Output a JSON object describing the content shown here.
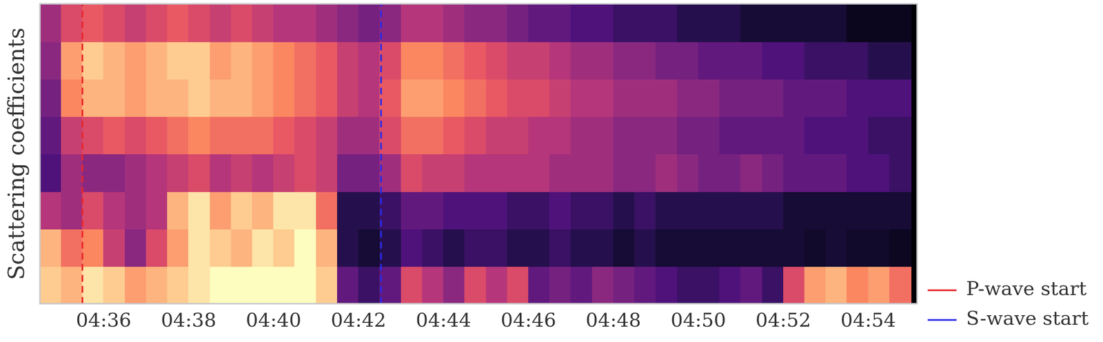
{
  "chart_data": {
    "type": "heatmap",
    "y_label": "Scattering coefficients",
    "x": [
      274.75,
      275.25,
      275.75,
      276.25,
      276.75,
      277.25,
      277.75,
      278.25,
      278.75,
      279.25,
      279.75,
      280.25,
      280.75,
      281.25,
      281.75,
      282.25,
      282.75,
      283.25,
      283.75,
      284.25,
      284.75,
      285.25,
      285.75,
      286.25,
      286.75,
      287.25,
      287.75,
      288.25,
      288.75,
      289.25,
      289.75,
      290.25,
      290.75,
      291.25,
      291.75,
      292.25,
      292.75,
      293.25,
      293.75,
      294.25,
      294.75
    ],
    "y": [
      0.5,
      1.5,
      2.5,
      3.5,
      4.5,
      5.5,
      6.5,
      7.5
    ],
    "z": [
      [
        0.9,
        0.85,
        0.95,
        0.9,
        0.8,
        0.85,
        0.9,
        0.95,
        1,
        1,
        1,
        1,
        1,
        0.9,
        0.3,
        0.2,
        0.3,
        0.6,
        0.5,
        0.4,
        0.6,
        0.5,
        0.6,
        0.3,
        0.35,
        0.3,
        0.4,
        0.35,
        0.3,
        0.25,
        0.2,
        0.2,
        0.25,
        0.3,
        0.2,
        0.6,
        0.8,
        0.85,
        0.75,
        0.8,
        0.7
      ],
      [
        0.85,
        0.7,
        0.75,
        0.55,
        0.4,
        0.6,
        0.8,
        0.95,
        0.9,
        0.85,
        0.95,
        0.9,
        1,
        0.85,
        0.15,
        0.1,
        0.15,
        0.25,
        0.2,
        0.15,
        0.2,
        0.2,
        0.15,
        0.15,
        0.2,
        0.15,
        0.15,
        0.1,
        0.15,
        0.1,
        0.1,
        0.1,
        0.1,
        0.1,
        0.1,
        0.1,
        0.08,
        0.1,
        0.08,
        0.08,
        0.06
      ],
      [
        0.5,
        0.45,
        0.6,
        0.5,
        0.45,
        0.5,
        0.85,
        0.95,
        0.8,
        0.9,
        0.85,
        0.95,
        0.95,
        0.7,
        0.15,
        0.15,
        0.2,
        0.3,
        0.3,
        0.25,
        0.25,
        0.25,
        0.2,
        0.2,
        0.25,
        0.2,
        0.2,
        0.15,
        0.2,
        0.15,
        0.15,
        0.15,
        0.15,
        0.15,
        0.15,
        0.1,
        0.1,
        0.1,
        0.1,
        0.1,
        0.1
      ],
      [
        0.25,
        0.45,
        0.4,
        0.4,
        0.45,
        0.5,
        0.55,
        0.6,
        0.5,
        0.55,
        0.5,
        0.55,
        0.6,
        0.55,
        0.35,
        0.35,
        0.45,
        0.6,
        0.55,
        0.55,
        0.5,
        0.5,
        0.5,
        0.5,
        0.45,
        0.45,
        0.45,
        0.4,
        0.4,
        0.45,
        0.4,
        0.35,
        0.35,
        0.4,
        0.35,
        0.3,
        0.3,
        0.3,
        0.25,
        0.25,
        0.2
      ],
      [
        0.3,
        0.55,
        0.6,
        0.65,
        0.6,
        0.65,
        0.7,
        0.75,
        0.7,
        0.7,
        0.7,
        0.65,
        0.6,
        0.55,
        0.45,
        0.45,
        0.6,
        0.7,
        0.7,
        0.65,
        0.6,
        0.55,
        0.55,
        0.5,
        0.5,
        0.45,
        0.45,
        0.4,
        0.4,
        0.4,
        0.35,
        0.35,
        0.3,
        0.3,
        0.3,
        0.3,
        0.25,
        0.25,
        0.25,
        0.2,
        0.2
      ],
      [
        0.35,
        0.75,
        0.85,
        0.85,
        0.8,
        0.85,
        0.85,
        0.9,
        0.85,
        0.85,
        0.8,
        0.75,
        0.7,
        0.65,
        0.55,
        0.5,
        0.65,
        0.8,
        0.8,
        0.75,
        0.7,
        0.65,
        0.6,
        0.6,
        0.55,
        0.5,
        0.5,
        0.45,
        0.45,
        0.45,
        0.4,
        0.4,
        0.35,
        0.35,
        0.35,
        0.3,
        0.3,
        0.3,
        0.25,
        0.25,
        0.25
      ],
      [
        0.4,
        0.8,
        0.9,
        0.85,
        0.8,
        0.85,
        0.9,
        0.9,
        0.8,
        0.85,
        0.8,
        0.75,
        0.7,
        0.65,
        0.55,
        0.5,
        0.6,
        0.75,
        0.75,
        0.7,
        0.65,
        0.6,
        0.55,
        0.55,
        0.5,
        0.45,
        0.45,
        0.4,
        0.4,
        0.35,
        0.35,
        0.3,
        0.3,
        0.3,
        0.25,
        0.25,
        0.2,
        0.2,
        0.2,
        0.15,
        0.15
      ],
      [
        0.45,
        0.6,
        0.65,
        0.6,
        0.55,
        0.6,
        0.65,
        0.6,
        0.55,
        0.6,
        0.55,
        0.5,
        0.5,
        0.45,
        0.4,
        0.35,
        0.4,
        0.5,
        0.5,
        0.45,
        0.4,
        0.4,
        0.35,
        0.3,
        0.3,
        0.25,
        0.25,
        0.2,
        0.2,
        0.2,
        0.15,
        0.15,
        0.15,
        0.1,
        0.1,
        0.1,
        0.1,
        0.1,
        0.05,
        0.05,
        0.05
      ]
    ],
    "zlim": [
      0,
      1
    ],
    "xlim": [
      274.5,
      295.15
    ],
    "xticks": [
      {
        "value": 276,
        "label": "04:36"
      },
      {
        "value": 278,
        "label": "04:38"
      },
      {
        "value": 280,
        "label": "04:40"
      },
      {
        "value": 282,
        "label": "04:42"
      },
      {
        "value": 284,
        "label": "04:44"
      },
      {
        "value": 286,
        "label": "04:46"
      },
      {
        "value": 288,
        "label": "04:48"
      },
      {
        "value": 290,
        "label": "04:50"
      },
      {
        "value": 292,
        "label": "04:52"
      },
      {
        "value": 294,
        "label": "04:54"
      }
    ],
    "ylim": [
      0,
      8
    ],
    "tick_labels": "x",
    "grid": false,
    "legend": "lower right",
    "series": [
      {
        "name": "P-wave start",
        "type": "vline",
        "x": 275.5,
        "color": "#e8262a",
        "line_style": "dashed"
      },
      {
        "name": "S-wave start",
        "type": "vline",
        "x": 282.53,
        "color": "#2a2ae8",
        "line_style": "dashed"
      }
    ]
  }
}
